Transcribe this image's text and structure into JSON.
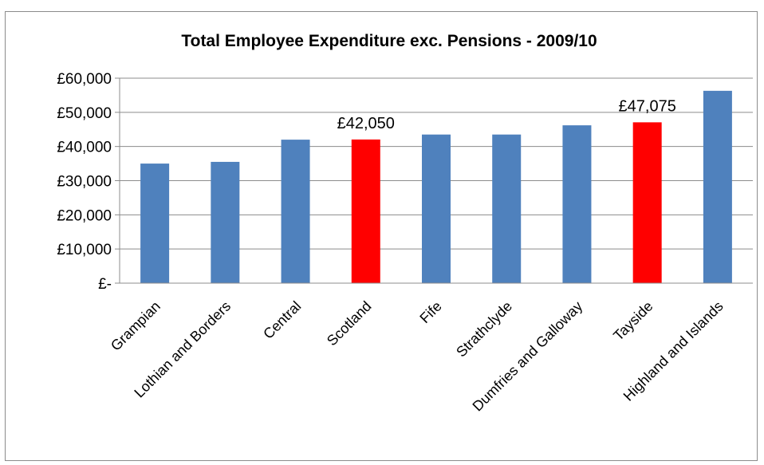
{
  "chart_data": {
    "type": "bar",
    "title": "Total Employee Expenditure exc. Pensions - 2009/10",
    "xlabel": "",
    "ylabel": "",
    "categories": [
      "Grampian",
      "Lothian and Borders",
      "Central",
      "Scotland",
      "Fife",
      "Strathclyde",
      "Dumfries and Galloway",
      "Tayside",
      "Highland and Islands"
    ],
    "values": [
      35000,
      35500,
      42000,
      42050,
      43500,
      43500,
      46200,
      47075,
      56300
    ],
    "ylim": [
      0,
      60000
    ],
    "yticks": [
      0,
      10000,
      20000,
      30000,
      40000,
      50000,
      60000
    ],
    "ytick_labels": [
      "£-",
      "£10,000",
      "£20,000",
      "£30,000",
      "£40,000",
      "£50,000",
      "£60,000"
    ],
    "grid": true,
    "colors": {
      "default": "#4f81bd",
      "highlight": "#ff0000"
    },
    "highlighted": [
      "Scotland",
      "Tayside"
    ],
    "data_labels": [
      {
        "category": "Scotland",
        "text": "£42,050"
      },
      {
        "category": "Tayside",
        "text": "£47,075"
      }
    ]
  }
}
